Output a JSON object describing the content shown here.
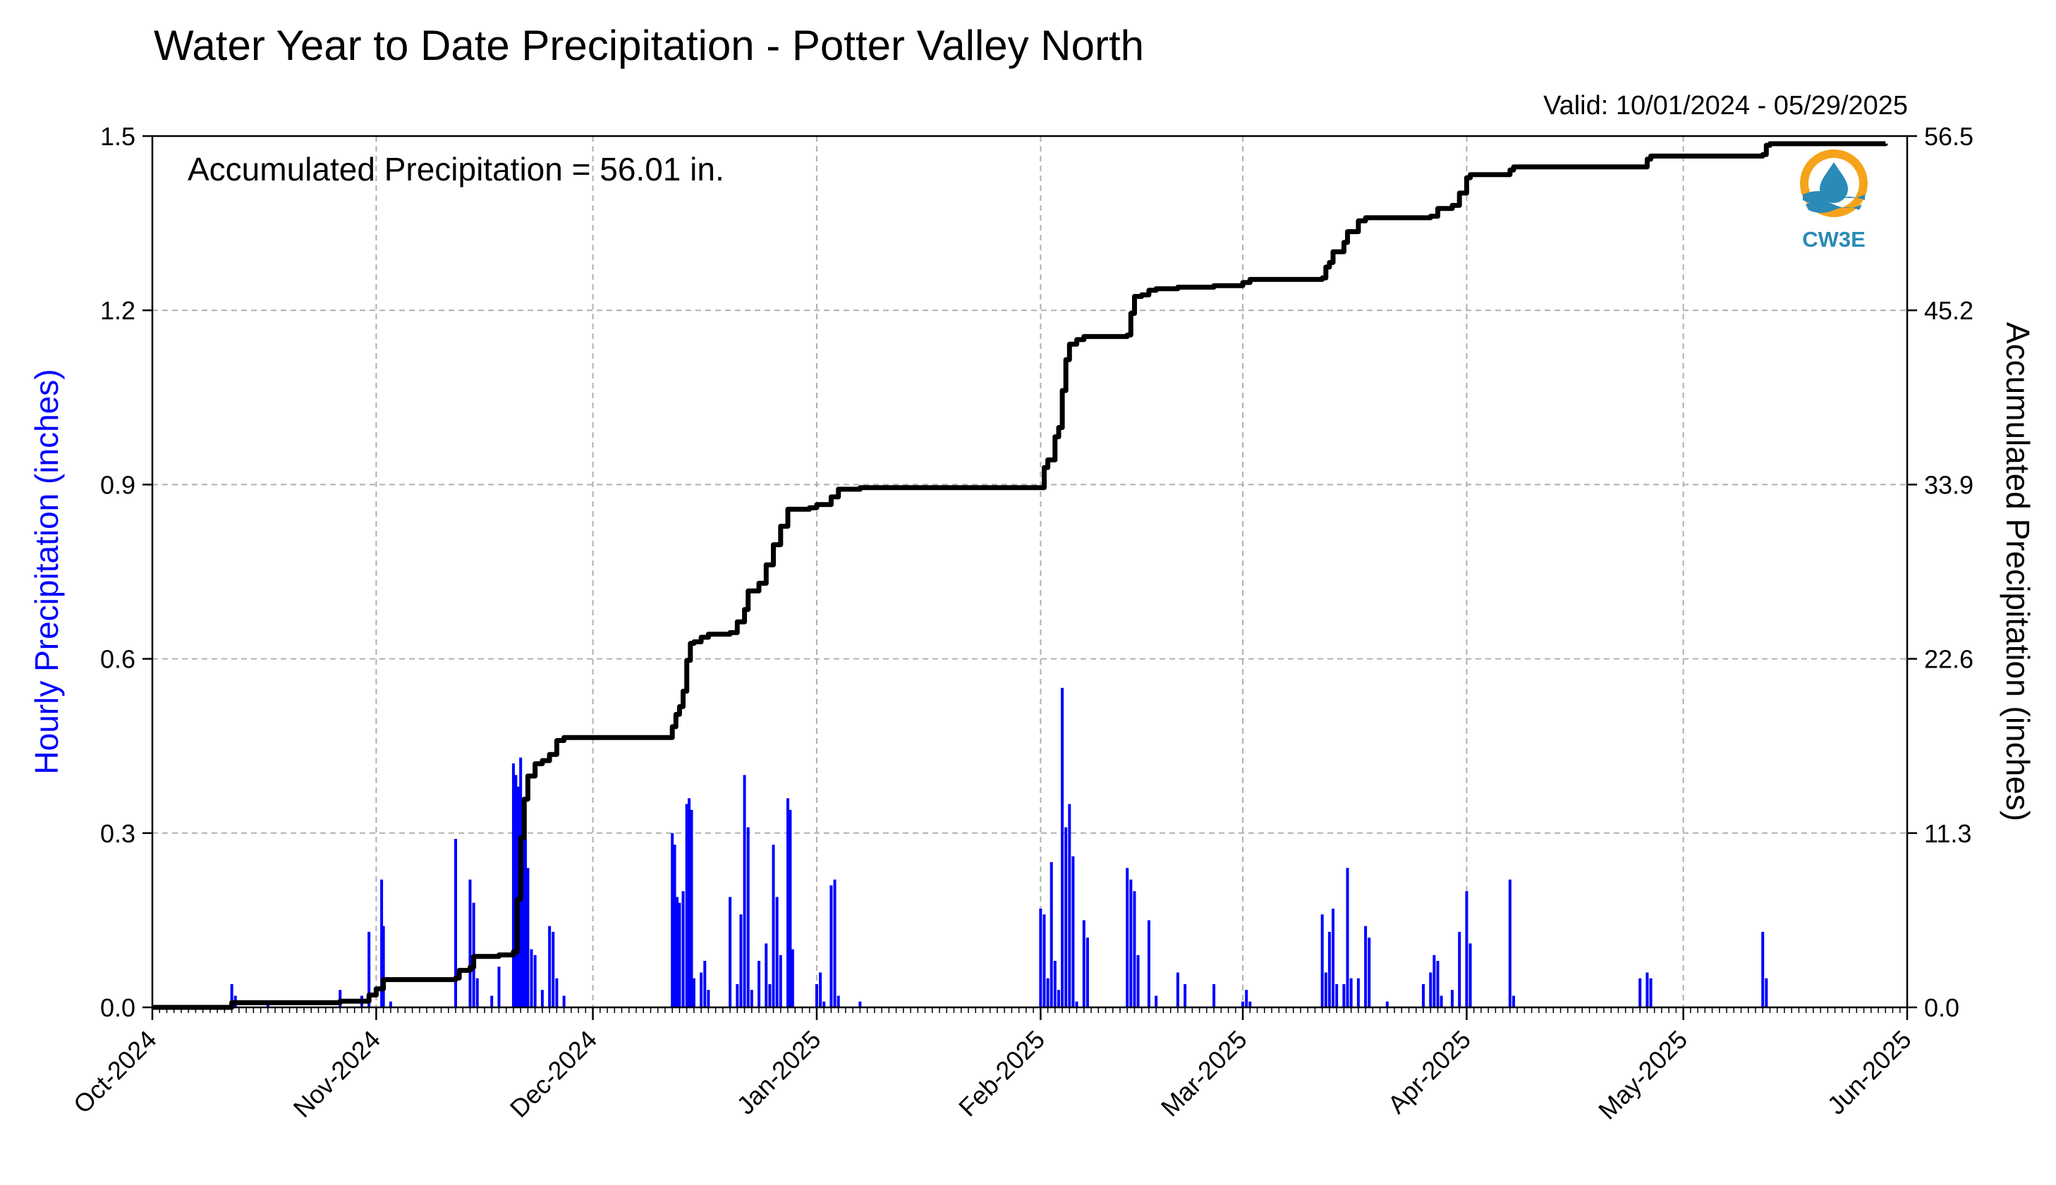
{
  "chart_data": {
    "type": "bar+line",
    "title": "Water Year to Date Precipitation - Potter Valley North",
    "valid_text": "Valid: 10/01/2024 - 05/29/2025",
    "annotation": "Accumulated Precipitation = 56.01 in.",
    "ylabel_left": "Hourly Precipitation (inches)",
    "ylabel_right": "Accumulated Precipitation (inches)",
    "ylim_left": [
      0,
      1.5
    ],
    "ylim_right": [
      0,
      56.5
    ],
    "yticks_left": [
      "0.0",
      "0.3",
      "0.6",
      "0.9",
      "1.2",
      "1.5"
    ],
    "yticks_right": [
      "0.0",
      "11.3",
      "22.6",
      "33.9",
      "45.2",
      "56.5"
    ],
    "xlim": [
      "2024-10-01",
      "2025-06-01"
    ],
    "xticks": [
      {
        "date": "2024-10-01",
        "label": "Oct-2024"
      },
      {
        "date": "2024-11-01",
        "label": "Nov-2024"
      },
      {
        "date": "2024-12-01",
        "label": "Dec-2024"
      },
      {
        "date": "2025-01-01",
        "label": "Jan-2025"
      },
      {
        "date": "2025-02-01",
        "label": "Feb-2025"
      },
      {
        "date": "2025-03-01",
        "label": "Mar-2025"
      },
      {
        "date": "2025-04-01",
        "label": "Apr-2025"
      },
      {
        "date": "2025-05-01",
        "label": "May-2025"
      },
      {
        "date": "2025-06-01",
        "label": "Jun-2025"
      }
    ],
    "grid": true,
    "colors": {
      "hourly": "#0000ff",
      "accumulated": "#000000",
      "ylabel_left": "#0000ff",
      "ylabel_right": "#000000"
    },
    "logo": {
      "text": "CW3E",
      "colors": [
        "#f5a31a",
        "#2a8ab8"
      ]
    },
    "hourly": [
      [
        "2024-10-12",
        0.04
      ],
      [
        "2024-10-12 12:00",
        0.02
      ],
      [
        "2024-10-17",
        0.01
      ],
      [
        "2024-10-27",
        0.03
      ],
      [
        "2024-10-30",
        0.02
      ],
      [
        "2024-10-31",
        0.13
      ],
      [
        "2024-11-01 18:00",
        0.22
      ],
      [
        "2024-11-02",
        0.14
      ],
      [
        "2024-11-03",
        0.01
      ],
      [
        "2024-11-12",
        0.29
      ],
      [
        "2024-11-14",
        0.22
      ],
      [
        "2024-11-14 12:00",
        0.18
      ],
      [
        "2024-11-15",
        0.05
      ],
      [
        "2024-11-17",
        0.02
      ],
      [
        "2024-11-18",
        0.07
      ],
      [
        "2024-11-20",
        0.42
      ],
      [
        "2024-11-20 08:00",
        0.4
      ],
      [
        "2024-11-20 16:00",
        0.38
      ],
      [
        "2024-11-21",
        0.43
      ],
      [
        "2024-11-21 08:00",
        0.36
      ],
      [
        "2024-11-21 16:00",
        0.29
      ],
      [
        "2024-11-22",
        0.24
      ],
      [
        "2024-11-22 12:00",
        0.1
      ],
      [
        "2024-11-23",
        0.09
      ],
      [
        "2024-11-24",
        0.03
      ],
      [
        "2024-11-25",
        0.14
      ],
      [
        "2024-11-25 12:00",
        0.13
      ],
      [
        "2024-11-26",
        0.05
      ],
      [
        "2024-11-27",
        0.02
      ],
      [
        "2024-12-12",
        0.3
      ],
      [
        "2024-12-12 08:00",
        0.28
      ],
      [
        "2024-12-12 16:00",
        0.19
      ],
      [
        "2024-12-13",
        0.18
      ],
      [
        "2024-12-13 12:00",
        0.2
      ],
      [
        "2024-12-14",
        0.35
      ],
      [
        "2024-12-14 08:00",
        0.36
      ],
      [
        "2024-12-14 16:00",
        0.34
      ],
      [
        "2024-12-15",
        0.05
      ],
      [
        "2024-12-16",
        0.06
      ],
      [
        "2024-12-16 12:00",
        0.08
      ],
      [
        "2024-12-17",
        0.03
      ],
      [
        "2024-12-20",
        0.19
      ],
      [
        "2024-12-21",
        0.04
      ],
      [
        "2024-12-21 12:00",
        0.16
      ],
      [
        "2024-12-22",
        0.4
      ],
      [
        "2024-12-22 12:00",
        0.31
      ],
      [
        "2024-12-23",
        0.03
      ],
      [
        "2024-12-24",
        0.08
      ],
      [
        "2024-12-25",
        0.11
      ],
      [
        "2024-12-25 12:00",
        0.04
      ],
      [
        "2024-12-26",
        0.28
      ],
      [
        "2024-12-26 12:00",
        0.19
      ],
      [
        "2024-12-27",
        0.09
      ],
      [
        "2024-12-28",
        0.36
      ],
      [
        "2024-12-28 08:00",
        0.34
      ],
      [
        "2024-12-28 16:00",
        0.1
      ],
      [
        "2025-01-01",
        0.04
      ],
      [
        "2025-01-01 12:00",
        0.06
      ],
      [
        "2025-01-02",
        0.01
      ],
      [
        "2025-01-03",
        0.21
      ],
      [
        "2025-01-03 12:00",
        0.22
      ],
      [
        "2025-01-04",
        0.02
      ],
      [
        "2025-01-07",
        0.01
      ],
      [
        "2025-02-01",
        0.17
      ],
      [
        "2025-02-01 12:00",
        0.16
      ],
      [
        "2025-02-02",
        0.05
      ],
      [
        "2025-02-02 12:00",
        0.25
      ],
      [
        "2025-02-03",
        0.08
      ],
      [
        "2025-02-03 12:00",
        0.03
      ],
      [
        "2025-02-04",
        0.55
      ],
      [
        "2025-02-04 12:00",
        0.31
      ],
      [
        "2025-02-05",
        0.35
      ],
      [
        "2025-02-05 12:00",
        0.26
      ],
      [
        "2025-02-06",
        0.01
      ],
      [
        "2025-02-07",
        0.15
      ],
      [
        "2025-02-07 12:00",
        0.12
      ],
      [
        "2025-02-13",
        0.24
      ],
      [
        "2025-02-13 12:00",
        0.22
      ],
      [
        "2025-02-14",
        0.2
      ],
      [
        "2025-02-14 12:00",
        0.09
      ],
      [
        "2025-02-16",
        0.15
      ],
      [
        "2025-02-17",
        0.02
      ],
      [
        "2025-02-20",
        0.06
      ],
      [
        "2025-02-21",
        0.04
      ],
      [
        "2025-02-25",
        0.04
      ],
      [
        "2025-03-01",
        0.01
      ],
      [
        "2025-03-01 12:00",
        0.03
      ],
      [
        "2025-03-02",
        0.01
      ],
      [
        "2025-03-12",
        0.16
      ],
      [
        "2025-03-12 12:00",
        0.06
      ],
      [
        "2025-03-13",
        0.13
      ],
      [
        "2025-03-13 12:00",
        0.17
      ],
      [
        "2025-03-14",
        0.04
      ],
      [
        "2025-03-15",
        0.04
      ],
      [
        "2025-03-15 12:00",
        0.24
      ],
      [
        "2025-03-16",
        0.05
      ],
      [
        "2025-03-17",
        0.05
      ],
      [
        "2025-03-18",
        0.14
      ],
      [
        "2025-03-18 12:00",
        0.12
      ],
      [
        "2025-03-21",
        0.01
      ],
      [
        "2025-03-26",
        0.04
      ],
      [
        "2025-03-27",
        0.06
      ],
      [
        "2025-03-27 12:00",
        0.09
      ],
      [
        "2025-03-28",
        0.08
      ],
      [
        "2025-03-28 12:00",
        0.02
      ],
      [
        "2025-03-30",
        0.03
      ],
      [
        "2025-03-31",
        0.13
      ],
      [
        "2025-04-01",
        0.2
      ],
      [
        "2025-04-01 12:00",
        0.11
      ],
      [
        "2025-04-07",
        0.22
      ],
      [
        "2025-04-07 12:00",
        0.02
      ],
      [
        "2025-04-25",
        0.05
      ],
      [
        "2025-04-26",
        0.06
      ],
      [
        "2025-04-26 12:00",
        0.05
      ],
      [
        "2025-05-12",
        0.13
      ],
      [
        "2025-05-12 12:00",
        0.05
      ]
    ],
    "accumulated": [
      [
        "2024-10-01",
        0.0
      ],
      [
        "2024-10-12",
        0.3
      ],
      [
        "2024-10-27",
        0.4
      ],
      [
        "2024-10-31",
        0.8
      ],
      [
        "2024-11-01",
        1.2
      ],
      [
        "2024-11-02",
        1.8
      ],
      [
        "2024-11-12",
        1.9
      ],
      [
        "2024-11-12 12:00",
        2.4
      ],
      [
        "2024-11-14",
        2.6
      ],
      [
        "2024-11-14 12:00",
        3.3
      ],
      [
        "2024-11-17",
        3.3
      ],
      [
        "2024-11-18",
        3.4
      ],
      [
        "2024-11-20",
        3.6
      ],
      [
        "2024-11-20 12:00",
        7.0
      ],
      [
        "2024-11-21",
        11.0
      ],
      [
        "2024-11-21 12:00",
        13.5
      ],
      [
        "2024-11-22",
        15.0
      ],
      [
        "2024-11-23",
        15.8
      ],
      [
        "2024-11-24",
        16.0
      ],
      [
        "2024-11-25",
        16.4
      ],
      [
        "2024-11-26",
        17.3
      ],
      [
        "2024-11-27",
        17.5
      ],
      [
        "2024-12-11",
        17.5
      ],
      [
        "2024-12-12",
        18.2
      ],
      [
        "2024-12-12 12:00",
        19.0
      ],
      [
        "2024-12-13",
        19.5
      ],
      [
        "2024-12-13 12:00",
        20.5
      ],
      [
        "2024-12-14",
        22.5
      ],
      [
        "2024-12-14 12:00",
        23.6
      ],
      [
        "2024-12-15",
        23.7
      ],
      [
        "2024-12-16",
        24.0
      ],
      [
        "2024-12-17",
        24.2
      ],
      [
        "2024-12-20",
        24.3
      ],
      [
        "2024-12-21",
        25.0
      ],
      [
        "2024-12-22",
        25.8
      ],
      [
        "2024-12-22 12:00",
        27.0
      ],
      [
        "2024-12-24",
        27.5
      ],
      [
        "2024-12-25",
        28.7
      ],
      [
        "2024-12-26",
        30.0
      ],
      [
        "2024-12-27",
        31.2
      ],
      [
        "2024-12-28",
        32.3
      ],
      [
        "2024-12-29",
        32.3
      ],
      [
        "2024-12-31",
        32.4
      ],
      [
        "2025-01-01",
        32.6
      ],
      [
        "2025-01-03",
        33.1
      ],
      [
        "2025-01-04",
        33.6
      ],
      [
        "2025-01-07",
        33.7
      ],
      [
        "2025-02-01",
        33.7
      ],
      [
        "2025-02-01 12:00",
        35.0
      ],
      [
        "2025-02-02",
        35.5
      ],
      [
        "2025-02-03",
        37.0
      ],
      [
        "2025-02-03 12:00",
        37.6
      ],
      [
        "2025-02-04",
        40.0
      ],
      [
        "2025-02-04 12:00",
        42.0
      ],
      [
        "2025-02-05",
        43.0
      ],
      [
        "2025-02-06",
        43.3
      ],
      [
        "2025-02-07",
        43.5
      ],
      [
        "2025-02-13",
        43.6
      ],
      [
        "2025-02-13 12:00",
        45.0
      ],
      [
        "2025-02-14",
        46.1
      ],
      [
        "2025-02-15",
        46.2
      ],
      [
        "2025-02-16",
        46.5
      ],
      [
        "2025-02-17",
        46.6
      ],
      [
        "2025-02-20",
        46.7
      ],
      [
        "2025-02-25",
        46.8
      ],
      [
        "2025-03-01",
        47.0
      ],
      [
        "2025-03-02",
        47.2
      ],
      [
        "2025-03-12",
        47.3
      ],
      [
        "2025-03-12 12:00",
        48.0
      ],
      [
        "2025-03-13",
        48.3
      ],
      [
        "2025-03-13 12:00",
        49.0
      ],
      [
        "2025-03-15",
        49.6
      ],
      [
        "2025-03-15 12:00",
        50.3
      ],
      [
        "2025-03-17",
        51.0
      ],
      [
        "2025-03-18",
        51.2
      ],
      [
        "2025-03-27",
        51.3
      ],
      [
        "2025-03-28",
        51.8
      ],
      [
        "2025-03-30",
        52.0
      ],
      [
        "2025-03-31",
        52.8
      ],
      [
        "2025-04-01",
        53.8
      ],
      [
        "2025-04-01 12:00",
        54.0
      ],
      [
        "2025-04-07",
        54.3
      ],
      [
        "2025-04-07 12:00",
        54.5
      ],
      [
        "2025-04-25",
        54.5
      ],
      [
        "2025-04-26",
        55.0
      ],
      [
        "2025-04-26 12:00",
        55.2
      ],
      [
        "2025-05-12",
        55.3
      ],
      [
        "2025-05-12 12:00",
        55.9
      ],
      [
        "2025-05-13",
        56.0
      ],
      [
        "2025-05-29",
        56.01
      ]
    ]
  }
}
